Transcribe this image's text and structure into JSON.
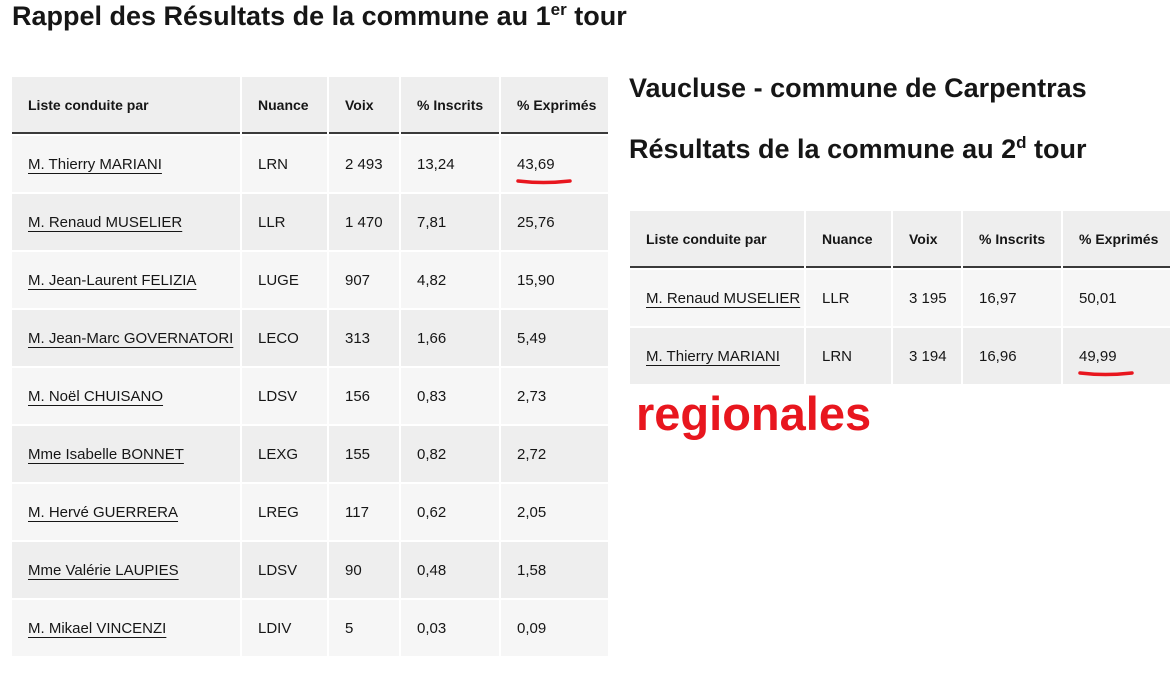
{
  "page": {
    "title_main": "Rappel des Résultats de la commune au 1",
    "title_main_sup": "er",
    "title_main_tail": " tour",
    "location_title": "Vaucluse - commune de Carpentras",
    "second_round_title": "Résultats de la commune au 2",
    "second_round_sup": "d",
    "second_round_tail": " tour",
    "annotation": "regionales",
    "annotation_color": "#e8161e"
  },
  "table_headers": {
    "candidate": "Liste conduite par",
    "nuance": "Nuance",
    "voix": "Voix",
    "inscrits": "% Inscrits",
    "exprimes": "% Exprimés"
  },
  "round1": [
    {
      "candidate": "M. Thierry MARIANI",
      "nuance": "LRN",
      "voix": "2 493",
      "inscrits": "13,24",
      "exprimes": "43,69"
    },
    {
      "candidate": "M. Renaud MUSELIER",
      "nuance": "LLR",
      "voix": "1 470",
      "inscrits": "7,81",
      "exprimes": "25,76"
    },
    {
      "candidate": "M. Jean-Laurent FELIZIA",
      "nuance": "LUGE",
      "voix": "907",
      "inscrits": "4,82",
      "exprimes": "15,90"
    },
    {
      "candidate": "M. Jean-Marc GOVERNATORI",
      "nuance": "LECO",
      "voix": "313",
      "inscrits": "1,66",
      "exprimes": "5,49"
    },
    {
      "candidate": "M. Noël CHUISANO",
      "nuance": "LDSV",
      "voix": "156",
      "inscrits": "0,83",
      "exprimes": "2,73"
    },
    {
      "candidate": "Mme Isabelle BONNET",
      "nuance": "LEXG",
      "voix": "155",
      "inscrits": "0,82",
      "exprimes": "2,72"
    },
    {
      "candidate": "M. Hervé GUERRERA",
      "nuance": "LREG",
      "voix": "117",
      "inscrits": "0,62",
      "exprimes": "2,05"
    },
    {
      "candidate": "Mme Valérie LAUPIES",
      "nuance": "LDSV",
      "voix": "90",
      "inscrits": "0,48",
      "exprimes": "1,58"
    },
    {
      "candidate": "M. Mikael VINCENZI",
      "nuance": "LDIV",
      "voix": "5",
      "inscrits": "0,03",
      "exprimes": "0,09"
    }
  ],
  "round2": [
    {
      "candidate": "M. Renaud MUSELIER",
      "nuance": "LLR",
      "voix": "3 195",
      "inscrits": "16,97",
      "exprimes": "50,01"
    },
    {
      "candidate": "M. Thierry MARIANI",
      "nuance": "LRN",
      "voix": "3 194",
      "inscrits": "16,96",
      "exprimes": "49,99"
    }
  ]
}
